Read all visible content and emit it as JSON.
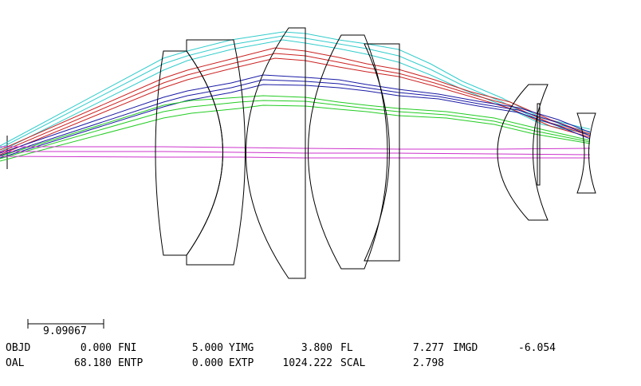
{
  "scale_bar": {
    "value": "9.09067"
  },
  "stats": {
    "row1": [
      {
        "label": "OBJD",
        "value": "0.000"
      },
      {
        "label": "FNI",
        "value": "5.000"
      },
      {
        "label": "YIMG",
        "value": "3.800"
      },
      {
        "label": "FL",
        "value": "7.277"
      },
      {
        "label": "IMGD",
        "value": "-6.054"
      }
    ],
    "row2": [
      {
        "label": "OAL",
        "value": "68.180"
      },
      {
        "label": "ENTP",
        "value": "0.000"
      },
      {
        "label": "EXTP",
        "value": "1024.222"
      },
      {
        "label": "SCAL",
        "value": "2.798"
      }
    ]
  },
  "colors": {
    "cyan": "#33cccc",
    "red": "#cc2222",
    "blue": "#1a1aa6",
    "green": "#22cc22",
    "magenta": "#cc33cc"
  }
}
